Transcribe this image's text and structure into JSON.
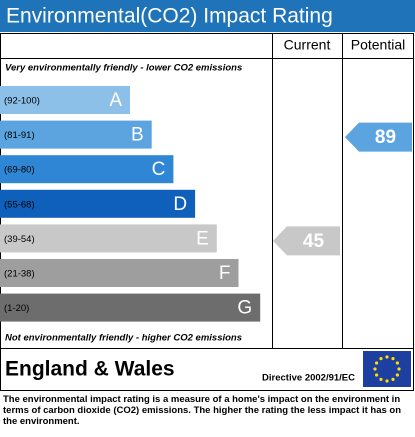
{
  "header": {
    "title": "Environmental(CO2) Impact Rating"
  },
  "columns": {
    "current": "Current",
    "potential": "Potential"
  },
  "top_note": "Very environmentally friendly - lower CO2 emissions",
  "bottom_note": "Not environmentally friendly - higher CO2 emissions",
  "bands": [
    {
      "range": "(92-100)",
      "letter": "A",
      "color": "#8cc0e8"
    },
    {
      "range": "(81-91)",
      "letter": "B",
      "color": "#5ca4e0"
    },
    {
      "range": "(69-80)",
      "letter": "C",
      "color": "#2f86d4"
    },
    {
      "range": "(55-68)",
      "letter": "D",
      "color": "#0f60ba"
    },
    {
      "range": "(39-54)",
      "letter": "E",
      "color": "#c8c8c8"
    },
    {
      "range": "(21-38)",
      "letter": "F",
      "color": "#9e9e9e"
    },
    {
      "range": "(1-20)",
      "letter": "G",
      "color": "#6d6d6d"
    }
  ],
  "ratings": {
    "current": 45,
    "potential": 89
  },
  "region": "England & Wales",
  "directive": "Directive 2002/91/EC",
  "footer": "The environmental impact rating is a measure of a home's impact on the environment in terms of carbon dioxide (CO2) emissions. The higher the rating the less impact it has on the environment."
}
